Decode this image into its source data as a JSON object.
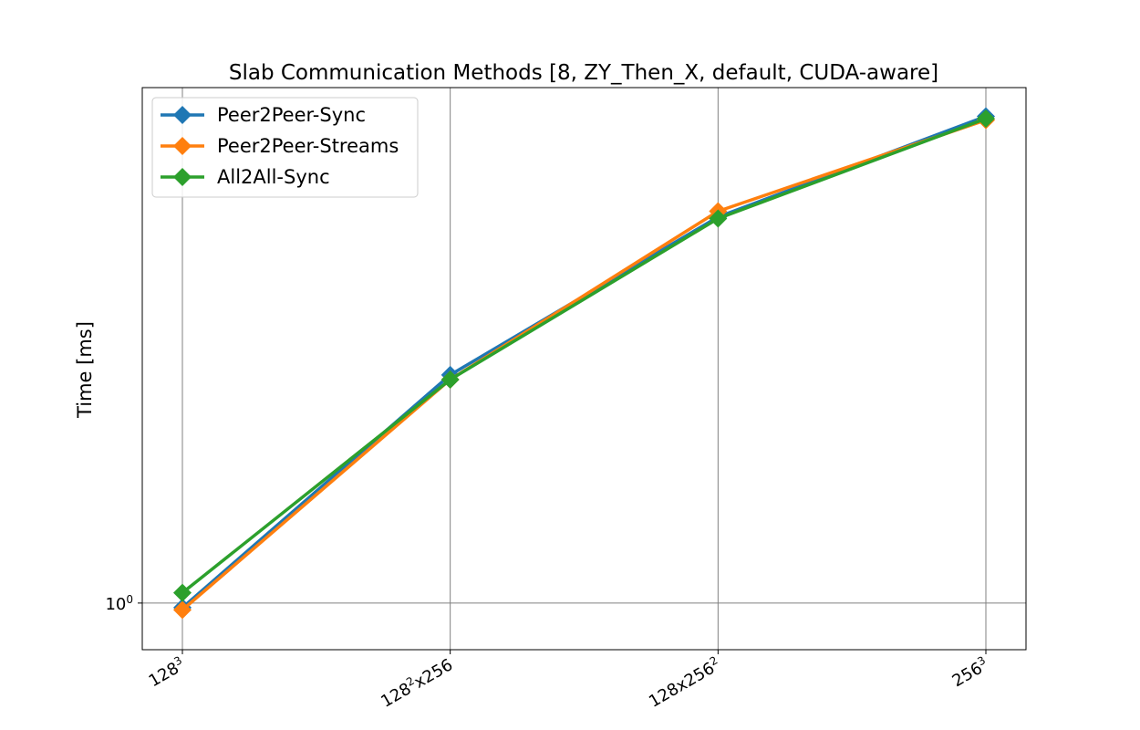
{
  "chart_data": {
    "type": "line",
    "title": "Slab Communication Methods [8, ZY_Then_X, default, CUDA-aware]",
    "xlabel": "",
    "ylabel": "Time [ms]",
    "y_scale": "log",
    "grid": true,
    "legend_position": "top-left",
    "categories": [
      "128³",
      "128²x256",
      "128x256²",
      "256³"
    ],
    "y_ticks": [
      {
        "value": 1,
        "base": "10",
        "exp": "0"
      }
    ],
    "ylim": [
      0.96,
      1.57
    ],
    "series": [
      {
        "name": "Peer2Peer-Sync",
        "color": "#1f77b4",
        "marker": "diamond",
        "values": [
          0.996,
          1.221,
          1.402,
          1.531
        ]
      },
      {
        "name": "Peer2Peer-Streams",
        "color": "#ff7f0e",
        "marker": "diamond",
        "values": [
          0.994,
          1.216,
          1.409,
          1.526
        ]
      },
      {
        "name": "All2All-Sync",
        "color": "#2ca02c",
        "marker": "diamond",
        "values": [
          1.009,
          1.216,
          1.4,
          1.528
        ]
      }
    ]
  }
}
